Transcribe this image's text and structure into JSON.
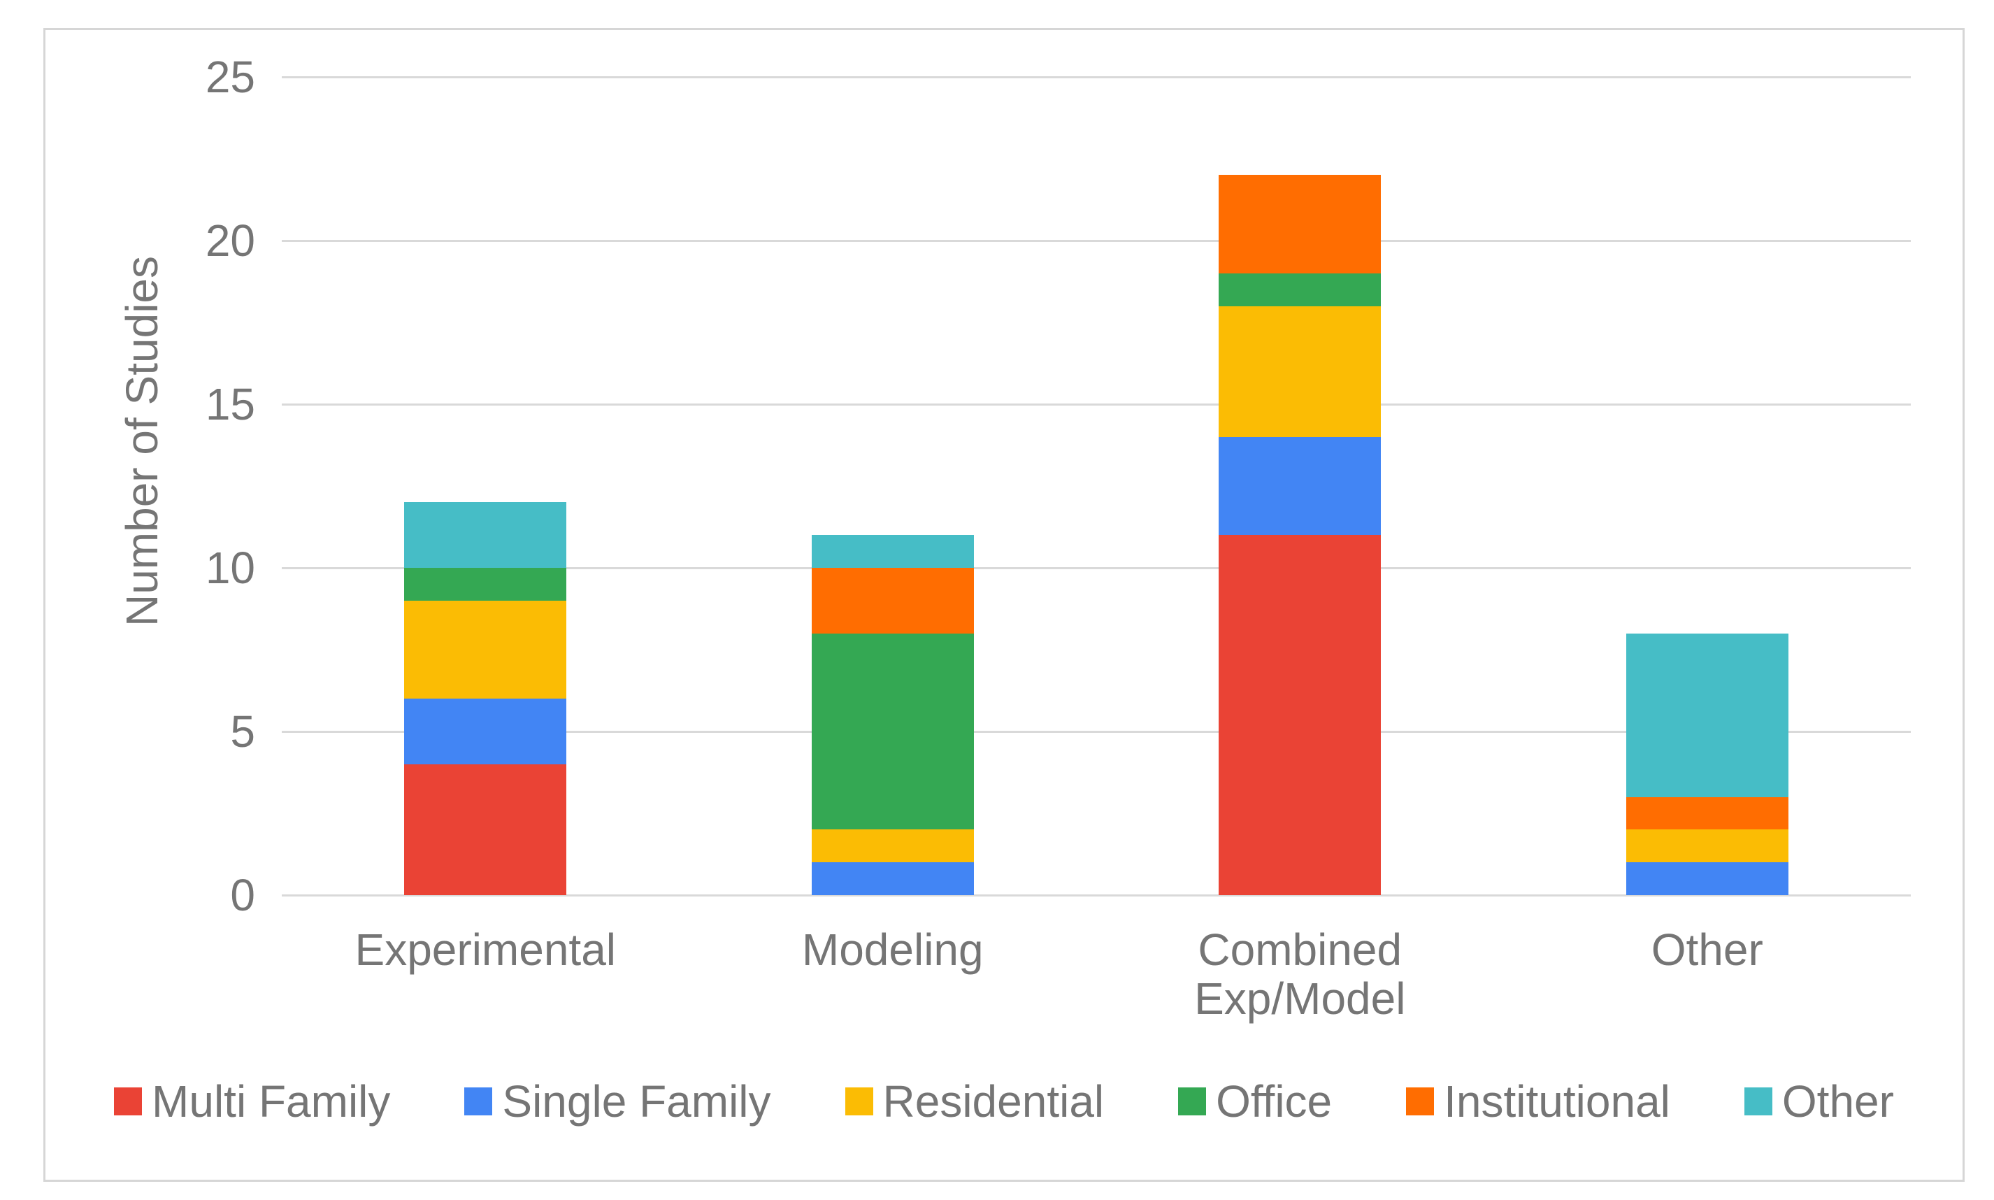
{
  "chart_data": {
    "type": "bar",
    "stacked": true,
    "title": "",
    "xlabel": "",
    "ylabel": "Number of Studies",
    "ylim": [
      0,
      25
    ],
    "yticks": [
      0,
      5,
      10,
      15,
      20,
      25
    ],
    "grid": "horizontal",
    "legend_position": "bottom",
    "categories": [
      "Experimental",
      "Modeling",
      "Combined Exp/Model",
      "Other"
    ],
    "category_display_lines": [
      [
        "Experimental"
      ],
      [
        "Modeling"
      ],
      [
        "Combined",
        "Exp/Model"
      ],
      [
        "Other"
      ]
    ],
    "series": [
      {
        "name": "Multi Family",
        "color": "#EA4335",
        "values": [
          4,
          0,
          11,
          0
        ]
      },
      {
        "name": "Single Family",
        "color": "#4285F4",
        "values": [
          2,
          1,
          3,
          1
        ]
      },
      {
        "name": "Residential",
        "color": "#FBBC04",
        "values": [
          3,
          1,
          4,
          1
        ]
      },
      {
        "name": "Office",
        "color": "#34A853",
        "values": [
          1,
          6,
          1,
          0
        ]
      },
      {
        "name": "Institutional",
        "color": "#FF6D01",
        "values": [
          0,
          2,
          3,
          1
        ]
      },
      {
        "name": "Other",
        "color": "#46BDC6",
        "values": [
          2,
          1,
          0,
          5
        ]
      }
    ],
    "totals": [
      12,
      11,
      22,
      8
    ]
  },
  "colors": {
    "background": "#ffffff",
    "frame_border": "#d6d6d6",
    "gridline": "#d9d9d9",
    "axis_text": "#757575"
  }
}
